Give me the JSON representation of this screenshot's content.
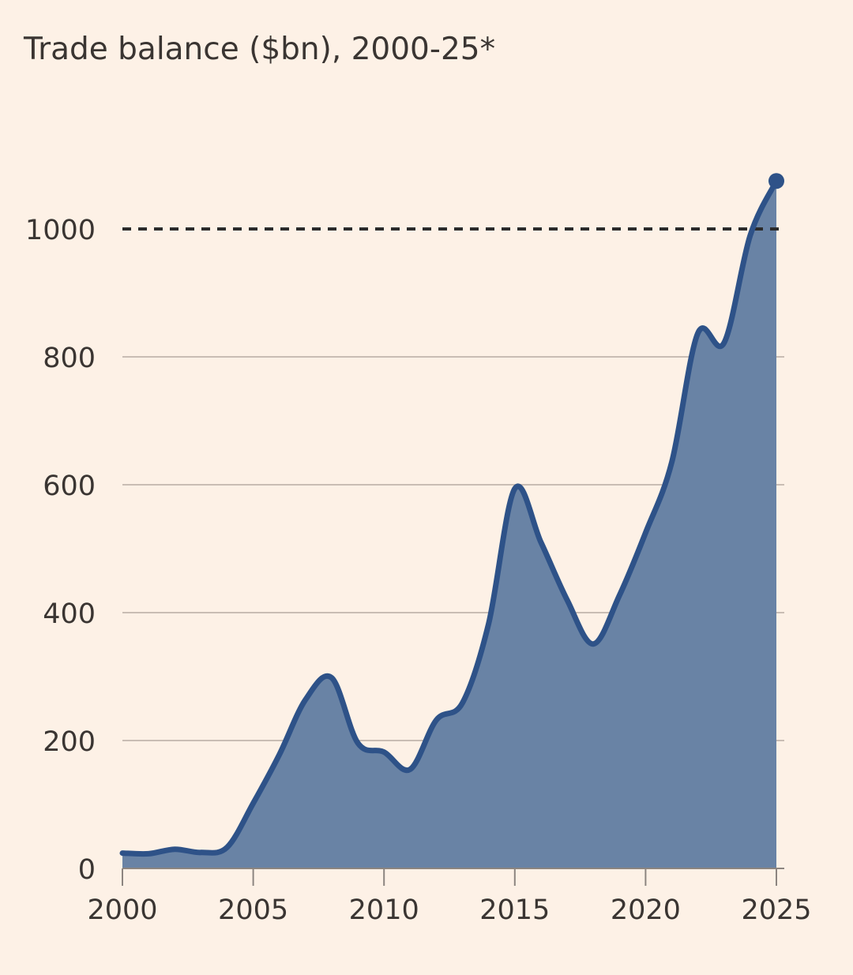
{
  "colors": {
    "background": "#fdf1e6",
    "area_fill": "#6983a5",
    "line": "#2e5288",
    "grid": "#c9bdb4",
    "axis": "#8c8580",
    "reference_line": "#2b2b2b",
    "text": "#3a3532"
  },
  "chart_data": {
    "type": "area",
    "title": "Trade balance ($bn), 2000-25*",
    "xlabel": "",
    "ylabel": "",
    "x": [
      2000,
      2001,
      2002,
      2003,
      2004,
      2005,
      2006,
      2007,
      2008,
      2009,
      2010,
      2011,
      2012,
      2013,
      2014,
      2015,
      2016,
      2017,
      2018,
      2019,
      2020,
      2021,
      2022,
      2023,
      2024,
      2025
    ],
    "series": [
      {
        "name": "Trade balance",
        "values": [
          24,
          23,
          30,
          25,
          33,
          102,
          178,
          264,
          298,
          196,
          182,
          155,
          232,
          259,
          383,
          594,
          510,
          420,
          351,
          427,
          525,
          635,
          837,
          822,
          990,
          1075
        ]
      }
    ],
    "xlim": [
      2000,
      2025
    ],
    "ylim": [
      0,
      1200
    ],
    "x_ticks": [
      2000,
      2005,
      2010,
      2015,
      2020,
      2025
    ],
    "x_tick_labels": [
      "2000",
      "2005",
      "2010",
      "2015",
      "2020",
      "2025"
    ],
    "y_ticks": [
      0,
      200,
      400,
      600,
      800,
      1000
    ],
    "y_tick_labels": [
      "0",
      "200",
      "400",
      "600",
      "800",
      "1000"
    ],
    "reference_line": {
      "value": 1000,
      "style": "dashed"
    },
    "end_marker": {
      "x": 2025,
      "y": 1075
    },
    "grid": true,
    "legend": "none"
  }
}
